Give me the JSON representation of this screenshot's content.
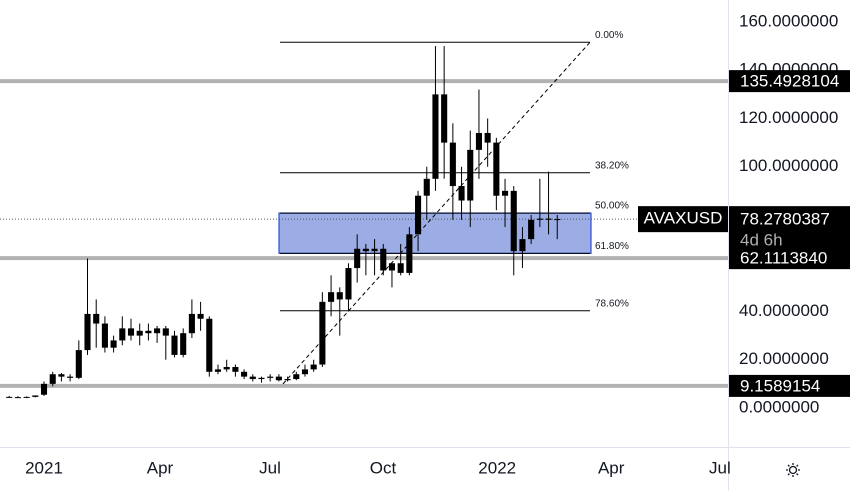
{
  "chart_data": {
    "type": "candlestick",
    "symbol": "AVAXUSD",
    "countdown": "4d 6h",
    "categories": [
      null,
      null,
      null,
      null,
      null,
      null,
      null,
      null,
      null,
      null,
      null,
      null,
      null,
      null,
      null,
      null,
      null,
      null,
      null,
      null,
      null,
      null,
      null,
      null,
      null,
      null,
      null,
      null,
      null,
      null,
      null,
      null,
      null,
      null,
      null,
      null,
      null,
      null,
      null,
      null,
      null,
      null,
      null,
      null,
      null,
      null,
      null,
      null,
      null,
      null,
      null,
      null,
      null,
      null,
      null,
      null,
      null,
      null,
      null,
      null,
      null,
      null,
      null,
      null
    ],
    "open": [
      4.6,
      4.5,
      4.4,
      4.6,
      5.5,
      10,
      14,
      13,
      12.5,
      24,
      39,
      35,
      25,
      28,
      33,
      30,
      32,
      31,
      33,
      30,
      22,
      31,
      39,
      37,
      15,
      16,
      17,
      15,
      13,
      12,
      12.5,
      13,
      11.5,
      12,
      14,
      16,
      18,
      44,
      48,
      45,
      58,
      66,
      65,
      66,
      57,
      60,
      56,
      72,
      88,
      95,
      130,
      110,
      92,
      86,
      107,
      114,
      110,
      88,
      90,
      65,
      70,
      78,
      78.5,
      78
    ],
    "high": [
      5,
      4.9,
      4.8,
      5.2,
      11,
      15,
      14.5,
      14,
      28,
      62,
      45,
      38,
      30,
      38,
      37,
      35,
      35,
      34,
      34,
      32,
      33,
      45,
      44,
      38,
      18,
      20,
      18,
      16,
      14,
      13,
      14,
      14,
      13,
      15,
      18,
      20,
      48,
      55,
      50,
      60,
      72,
      68,
      70,
      68,
      60,
      68,
      75,
      90,
      100,
      150,
      150,
      118,
      100,
      115,
      132,
      120,
      112,
      95,
      92,
      75,
      80,
      95,
      98,
      80
    ],
    "low": [
      4.3,
      4.2,
      4.1,
      4.4,
      5,
      9,
      11,
      11,
      12,
      22,
      25,
      23,
      23,
      26,
      28,
      26,
      28,
      27,
      20,
      21,
      21,
      29,
      32,
      13,
      14,
      15,
      13,
      12,
      11,
      10.5,
      11,
      11,
      11,
      11.5,
      13,
      15,
      17,
      38,
      30,
      40,
      52,
      55,
      55,
      55,
      50,
      55,
      55,
      65,
      78,
      90,
      95,
      78,
      78,
      75,
      95,
      100,
      82,
      75,
      55,
      58,
      68,
      75,
      72,
      70
    ],
    "close": [
      4.5,
      4.4,
      4.6,
      5.2,
      10,
      14,
      13,
      12.5,
      24,
      39,
      35,
      25,
      28,
      33,
      30,
      32,
      31,
      33,
      30,
      22,
      31,
      39,
      37,
      15,
      16,
      17,
      15,
      13,
      12,
      12.5,
      13,
      11.5,
      12,
      14,
      16,
      18,
      44,
      48,
      45,
      58,
      66,
      65,
      66,
      57,
      60,
      56,
      72,
      88,
      95,
      130,
      110,
      92,
      86,
      107,
      114,
      110,
      88,
      90,
      65,
      70,
      78,
      78.5,
      78,
      78.3
    ],
    "candle_color": "#000000",
    "xlim": [
      -1.06,
      82.63
    ],
    "xticks": [
      {
        "value": 4,
        "label": "2021"
      },
      {
        "value": 17.33,
        "label": "Apr"
      },
      {
        "value": 29.98,
        "label": "Jul"
      },
      {
        "value": 42.97,
        "label": "Oct"
      },
      {
        "value": 56.1,
        "label": "2022"
      },
      {
        "value": 69.2,
        "label": "Apr"
      },
      {
        "value": 81.7,
        "label": "Jul"
      }
    ],
    "ylim": [
      -16.17,
      169.12
    ],
    "yticks": [
      {
        "value": 0,
        "label": "0.0000000"
      },
      {
        "value": 20,
        "label": "20.0000000"
      },
      {
        "value": 40,
        "label": "40.0000000"
      },
      {
        "value": 100,
        "label": "100.0000000"
      },
      {
        "value": 120,
        "label": "120.0000000"
      },
      {
        "value": 140,
        "label": "140.0000000"
      },
      {
        "value": 160,
        "label": "160.0000000"
      }
    ],
    "horizontal_levels": [
      {
        "value": 135.4928104,
        "label": "135.4928104"
      },
      {
        "value": 62.111384,
        "label": "62.1113840"
      },
      {
        "value": 9.1589154,
        "label": "9.1589154"
      }
    ],
    "level_color": "#b2b2b2",
    "last_price": {
      "value": 78.2780387,
      "label": "78.2780387"
    },
    "fib_levels": [
      {
        "value": 151.6,
        "label": "0.00%"
      },
      {
        "value": 97.5,
        "label": "38.20%"
      },
      {
        "value": 80.8,
        "label": "50.00%"
      },
      {
        "value": 64.1,
        "label": "61.80%"
      },
      {
        "value": 40.3,
        "label": "78.60%"
      }
    ],
    "trendline": {
      "start": 10,
      "end": 151.6
    },
    "zone": {
      "top": 80.8,
      "bottom": 64.1,
      "color": "#8b9ddf"
    }
  }
}
